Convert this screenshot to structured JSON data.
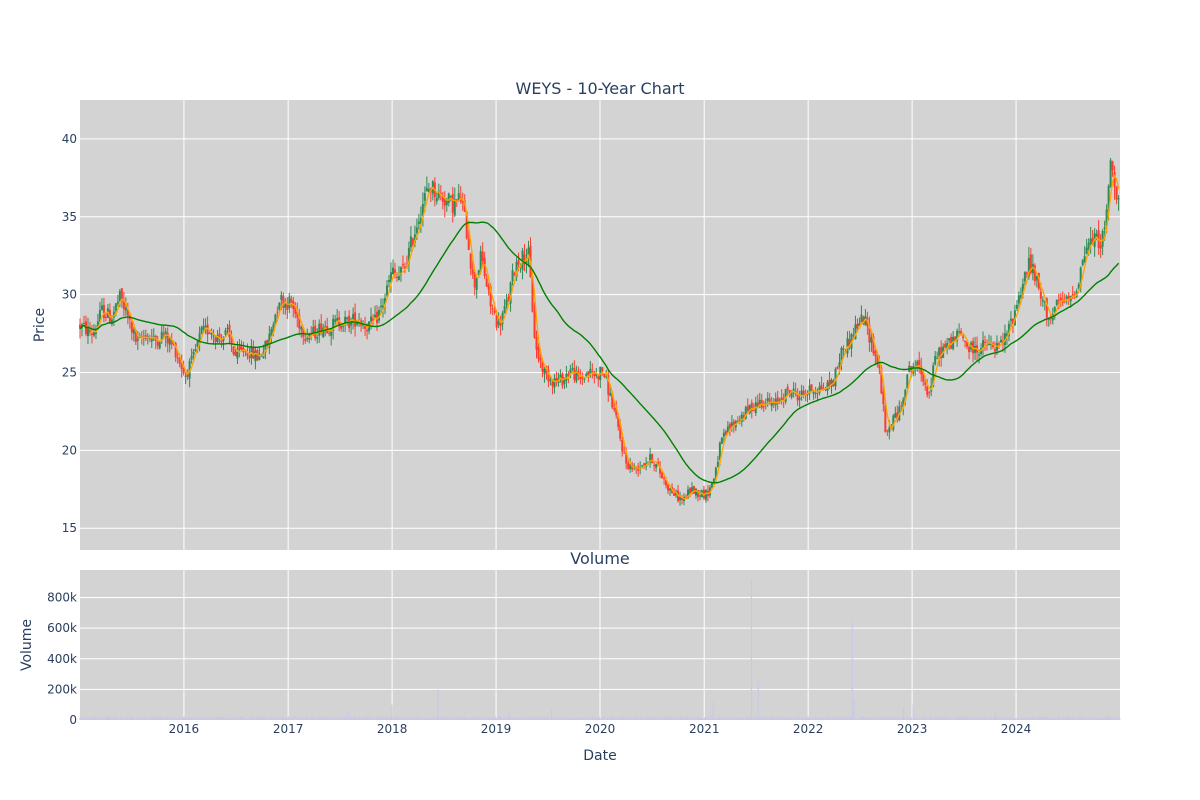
{
  "chart_data": [
    {
      "type": "candlestick",
      "title": "WEYS - 10-Year Chart",
      "ylabel": "Price",
      "ylim": [
        13.6,
        42.5
      ],
      "yticks": [
        15,
        20,
        25,
        30,
        35,
        40
      ],
      "x_range": [
        "2015-01-01",
        "2024-12-31"
      ],
      "grid": true,
      "up_color": "#2e8b57",
      "down_color": "#ff3b2f",
      "price_anchors": {
        "x": [
          "2015-01-01",
          "2015-02-15",
          "2015-03-20",
          "2015-04-20",
          "2015-05-20",
          "2015-06-20",
          "2015-07-20",
          "2015-08-20",
          "2015-09-20",
          "2015-10-20",
          "2015-12-01",
          "2016-01-05",
          "2016-02-01",
          "2016-03-01",
          "2016-04-01",
          "2016-05-01",
          "2016-06-01",
          "2016-07-01",
          "2016-08-01",
          "2016-09-15",
          "2016-10-20",
          "2016-12-01",
          "2016-12-20",
          "2017-01-10",
          "2017-02-01",
          "2017-03-01",
          "2017-04-01",
          "2017-05-01",
          "2017-06-01",
          "2017-07-01",
          "2017-08-01",
          "2017-09-01",
          "2017-10-01",
          "2017-11-01",
          "2017-12-01",
          "2018-01-01",
          "2018-01-20",
          "2018-02-15",
          "2018-03-20",
          "2018-04-20",
          "2018-05-15",
          "2018-06-10",
          "2018-07-01",
          "2018-08-01",
          "2018-09-01",
          "2018-09-25",
          "2018-10-15",
          "2018-11-10",
          "2018-12-10",
          "2019-01-10",
          "2019-02-10",
          "2019-03-10",
          "2019-04-10",
          "2019-04-25",
          "2019-05-20",
          "2019-06-20",
          "2019-07-20",
          "2019-08-20",
          "2019-09-20",
          "2019-10-20",
          "2019-11-20",
          "2019-12-20",
          "2020-01-10",
          "2020-02-01",
          "2020-02-20",
          "2020-03-15",
          "2020-04-01",
          "2020-05-01",
          "2020-06-01",
          "2020-07-01",
          "2020-08-01",
          "2020-09-01",
          "2020-10-01",
          "2020-10-20",
          "2020-11-15",
          "2020-12-10",
          "2021-01-10",
          "2021-02-01",
          "2021-03-01",
          "2021-04-01",
          "2021-05-01",
          "2021-06-01",
          "2021-07-01",
          "2021-08-01",
          "2021-09-01",
          "2021-10-01",
          "2021-11-01",
          "2021-12-01",
          "2022-01-01",
          "2022-02-01",
          "2022-03-01",
          "2022-04-01",
          "2022-05-01",
          "2022-05-25",
          "2022-06-20",
          "2022-07-15",
          "2022-08-15",
          "2022-09-10",
          "2022-10-01",
          "2022-10-25",
          "2022-11-20",
          "2022-12-15",
          "2023-01-10",
          "2023-02-05",
          "2023-03-01",
          "2023-03-25",
          "2023-04-20",
          "2023-05-20",
          "2023-06-20",
          "2023-07-20",
          "2023-08-20",
          "2023-09-20",
          "2023-10-20",
          "2023-11-20",
          "2023-12-20",
          "2024-01-20",
          "2024-02-15",
          "2024-03-10",
          "2024-04-01",
          "2024-05-01",
          "2024-06-01",
          "2024-07-01",
          "2024-08-01",
          "2024-09-01",
          "2024-10-01",
          "2024-10-25",
          "2024-11-10",
          "2024-11-25",
          "2024-12-15",
          "2024-12-31"
        ],
        "y": [
          28.0,
          27.5,
          29.0,
          28.5,
          29.8,
          28.5,
          26.8,
          27.5,
          27.0,
          27.5,
          26.5,
          24.8,
          25.8,
          27.5,
          27.8,
          27.2,
          27.5,
          26.0,
          26.5,
          26.0,
          26.8,
          29.8,
          29.5,
          29.5,
          28.5,
          27.5,
          27.5,
          28.0,
          28.0,
          28.3,
          28.2,
          28.5,
          28.0,
          28.2,
          29.5,
          31.5,
          31.0,
          31.8,
          34.0,
          36.0,
          37.0,
          36.5,
          36.2,
          35.8,
          36.2,
          33.5,
          30.5,
          32.5,
          29.5,
          28.0,
          29.5,
          32.0,
          32.5,
          32.5,
          26.5,
          25.0,
          24.5,
          24.5,
          25.2,
          24.5,
          25.0,
          24.8,
          25.2,
          23.8,
          22.5,
          20.5,
          19.2,
          18.8,
          19.2,
          19.5,
          18.5,
          17.5,
          17.0,
          16.8,
          17.5,
          17.3,
          17.2,
          18.0,
          20.5,
          21.5,
          22.0,
          22.5,
          23.0,
          23.2,
          22.8,
          23.5,
          23.8,
          23.5,
          23.8,
          24.0,
          24.0,
          24.5,
          26.5,
          27.0,
          28.0,
          28.5,
          26.8,
          25.0,
          20.8,
          22.0,
          22.5,
          25.0,
          25.5,
          25.0,
          23.5,
          26.0,
          26.5,
          27.0,
          27.5,
          26.5,
          26.5,
          26.8,
          26.5,
          27.0,
          28.5,
          30.5,
          32.0,
          31.0,
          29.5,
          28.5,
          29.5,
          29.5,
          30.5,
          33.0,
          33.5,
          33.5,
          34.0,
          38.5,
          36.8,
          36.5
        ]
      }
    },
    {
      "type": "bar",
      "title": "Volume",
      "xlabel": "Date",
      "ylabel": "Volume",
      "ylim": [
        0,
        980000
      ],
      "yticks": [
        0,
        200000,
        400000,
        600000,
        800000
      ],
      "ytick_labels": [
        "0",
        "200k",
        "400k",
        "600k",
        "800k"
      ],
      "xticks": [
        "2016-01-01",
        "2017-01-01",
        "2018-01-01",
        "2019-01-01",
        "2020-01-01",
        "2021-01-01",
        "2022-01-01",
        "2023-01-01",
        "2024-01-01"
      ],
      "xtick_labels": [
        "2016",
        "2017",
        "2018",
        "2019",
        "2020",
        "2021",
        "2022",
        "2023",
        "2024"
      ],
      "bar_color": "#c9c9e6",
      "grid": true,
      "spikes": {
        "x": [
          "2017-08-01",
          "2018-01-01",
          "2018-06-10",
          "2019-02-15",
          "2019-07-15",
          "2021-02-01",
          "2021-06-15",
          "2021-07-10",
          "2022-06-05",
          "2022-06-12",
          "2022-12-01",
          "2023-01-05",
          "2023-10-20"
        ],
        "y": [
          60000,
          100000,
          200000,
          60000,
          70000,
          120000,
          920000,
          250000,
          640000,
          140000,
          80000,
          100000,
          60000
        ]
      },
      "baseline": 15000
    }
  ]
}
